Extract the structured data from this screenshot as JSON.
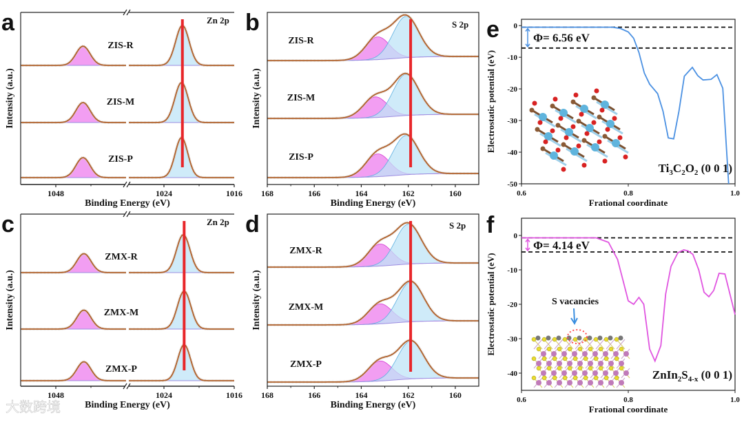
{
  "figure": {
    "watermark": "大数跨境"
  },
  "chart_data": [
    {
      "panel": "a",
      "type": "line",
      "title": "Zn 2p",
      "xlabel": "Binding Energy (eV)",
      "ylabel": "Intensity (a.u.)",
      "x_segments": [
        [
          1052,
          1040
        ],
        [
          1028,
          1016
        ]
      ],
      "xticks": [
        1048,
        1024,
        1016
      ],
      "reference_line_eV": 1021.9,
      "series": [
        {
          "name": "ZIS-R",
          "peaks": [
            {
              "center": 1044.9,
              "fwhm": 1.9,
              "height": 0.48
            },
            {
              "center": 1021.9,
              "fwhm": 1.8,
              "height": 1.0
            }
          ]
        },
        {
          "name": "ZIS-M",
          "peaks": [
            {
              "center": 1044.9,
              "fwhm": 1.9,
              "height": 0.5
            },
            {
              "center": 1022.0,
              "fwhm": 1.8,
              "height": 1.0
            }
          ]
        },
        {
          "name": "ZIS-P",
          "peaks": [
            {
              "center": 1044.9,
              "fwhm": 1.9,
              "height": 0.5
            },
            {
              "center": 1022.0,
              "fwhm": 1.7,
              "height": 1.0
            }
          ]
        }
      ]
    },
    {
      "panel": "b",
      "type": "line",
      "title": "S 2p",
      "xlabel": "Binding Energy (eV)",
      "ylabel": "Intensity (a.u.)",
      "xlim": [
        168,
        159
      ],
      "xticks": [
        168,
        166,
        164,
        162,
        160
      ],
      "reference_line_eV": 161.9,
      "series": [
        {
          "name": "ZIS-R",
          "peaks": [
            {
              "center": 163.3,
              "fwhm": 1.2,
              "height": 0.55
            },
            {
              "center": 162.1,
              "fwhm": 1.3,
              "height": 1.0
            }
          ]
        },
        {
          "name": "ZIS-M",
          "peaks": [
            {
              "center": 163.4,
              "fwhm": 1.2,
              "height": 0.5
            },
            {
              "center": 162.1,
              "fwhm": 1.3,
              "height": 1.0
            }
          ]
        },
        {
          "name": "ZIS-P",
          "peaks": [
            {
              "center": 163.3,
              "fwhm": 1.2,
              "height": 0.55
            },
            {
              "center": 162.1,
              "fwhm": 1.3,
              "height": 0.95
            }
          ]
        }
      ]
    },
    {
      "panel": "c",
      "type": "line",
      "title": "Zn 2p",
      "xlabel": "Binding Energy (eV)",
      "ylabel": "Intensity (a.u.)",
      "x_segments": [
        [
          1052,
          1040
        ],
        [
          1028,
          1016
        ]
      ],
      "xticks": [
        1048,
        1024,
        1016
      ],
      "reference_line_eV": 1021.7,
      "series": [
        {
          "name": "ZMX-R",
          "peaks": [
            {
              "center": 1044.8,
              "fwhm": 1.9,
              "height": 0.5
            },
            {
              "center": 1021.8,
              "fwhm": 1.8,
              "height": 1.0
            }
          ]
        },
        {
          "name": "ZMX-M",
          "peaks": [
            {
              "center": 1044.8,
              "fwhm": 1.9,
              "height": 0.5
            },
            {
              "center": 1021.7,
              "fwhm": 1.8,
              "height": 1.0
            }
          ]
        },
        {
          "name": "ZMX-P",
          "peaks": [
            {
              "center": 1044.8,
              "fwhm": 1.9,
              "height": 0.5
            },
            {
              "center": 1021.7,
              "fwhm": 1.7,
              "height": 0.95
            }
          ]
        }
      ]
    },
    {
      "panel": "d",
      "type": "line",
      "title": "S 2p",
      "xlabel": "Binding Energy (eV)",
      "ylabel": "Intensity (a.u.)",
      "xlim": [
        168,
        159
      ],
      "xticks": [
        168,
        166,
        164,
        162,
        160
      ],
      "reference_line_eV": 161.9,
      "series": [
        {
          "name": "ZMX-R",
          "peaks": [
            {
              "center": 163.2,
              "fwhm": 1.2,
              "height": 0.55
            },
            {
              "center": 162.0,
              "fwhm": 1.3,
              "height": 1.0
            }
          ]
        },
        {
          "name": "ZMX-M",
          "peaks": [
            {
              "center": 163.2,
              "fwhm": 1.2,
              "height": 0.5
            },
            {
              "center": 161.9,
              "fwhm": 1.3,
              "height": 1.0
            }
          ]
        },
        {
          "name": "ZMX-P",
          "peaks": [
            {
              "center": 163.2,
              "fwhm": 1.2,
              "height": 0.5
            },
            {
              "center": 161.9,
              "fwhm": 1.3,
              "height": 0.95
            }
          ]
        }
      ]
    },
    {
      "panel": "e",
      "type": "line",
      "xlabel": "Frational coordinate",
      "ylabel": "Electrostatic potential (eV)",
      "xlim": [
        0.6,
        1.0
      ],
      "ylim": [
        -50,
        2
      ],
      "xticks": [
        0.6,
        0.8,
        1.0
      ],
      "yticks": [
        0,
        -10,
        -20,
        -30,
        -40,
        -50
      ],
      "xtick_labels": [
        "0.6",
        "0.8",
        "1.0"
      ],
      "ytick_labels": [
        "0",
        "-10",
        "-20",
        "-30",
        "-40",
        "-50"
      ],
      "color": "#4a90e2",
      "vacuum_level": -0.5,
      "fermi_level": -7.1,
      "work_function_label": "Φ= 6.56 eV",
      "structure_label": {
        "main": "Ti",
        "s1": "3",
        "m2": "C",
        "s2": "2",
        "m3": "O",
        "s3": "2",
        "tail": " (0 0 1)"
      },
      "x": [
        0.6,
        0.77,
        0.785,
        0.8,
        0.81,
        0.82,
        0.83,
        0.84,
        0.855,
        0.865,
        0.875,
        0.885,
        0.895,
        0.905,
        0.92,
        0.93,
        0.94,
        0.955,
        0.966,
        0.977,
        0.988
      ],
      "y": [
        -0.5,
        -0.5,
        -0.9,
        -2,
        -4,
        -8.5,
        -15,
        -18.5,
        -21.5,
        -27,
        -35.5,
        -35.8,
        -27,
        -16,
        -13.2,
        -15.8,
        -17.2,
        -17,
        -15.5,
        -19.8,
        -50
      ]
    },
    {
      "panel": "f",
      "type": "line",
      "xlabel": "Frational coordinate",
      "ylabel": "Electrostatic potential (eV)",
      "xlim": [
        0.6,
        1.0
      ],
      "ylim": [
        -45,
        5
      ],
      "xticks": [
        0.6,
        0.8,
        1.0
      ],
      "yticks": [
        0,
        -10,
        -20,
        -30,
        -40
      ],
      "xtick_labels": [
        "0.6",
        "0.8",
        "1.0"
      ],
      "ytick_labels": [
        "0",
        "-10",
        "-20",
        "-30",
        "-40"
      ],
      "color": "#e055e0",
      "vacuum_level": -0.7,
      "fermi_level": -4.8,
      "work_function_label": "Φ= 4.14 eV",
      "annotation": "S vacancies",
      "structure_label": {
        "main": "ZnIn",
        "s1": "2",
        "m2": "S",
        "s2": "4-x",
        "tail": " (0 0 1)"
      },
      "x": [
        0.6,
        0.74,
        0.763,
        0.78,
        0.79,
        0.8,
        0.81,
        0.82,
        0.829,
        0.84,
        0.85,
        0.861,
        0.87,
        0.88,
        0.893,
        0.904,
        0.912,
        0.921,
        0.932,
        0.942,
        0.951,
        0.96,
        0.97,
        0.981,
        0.992,
        1.0
      ],
      "y": [
        -0.7,
        -0.7,
        -2,
        -7,
        -13,
        -19,
        -20,
        -18,
        -20,
        -33,
        -36.5,
        -32,
        -17,
        -9,
        -5,
        -4.2,
        -4.5,
        -5.5,
        -10,
        -16.5,
        -17.8,
        -16,
        -11,
        -11.2,
        -18,
        -23
      ]
    }
  ],
  "panel_letters": [
    "a",
    "b",
    "c",
    "d",
    "e",
    "f"
  ]
}
